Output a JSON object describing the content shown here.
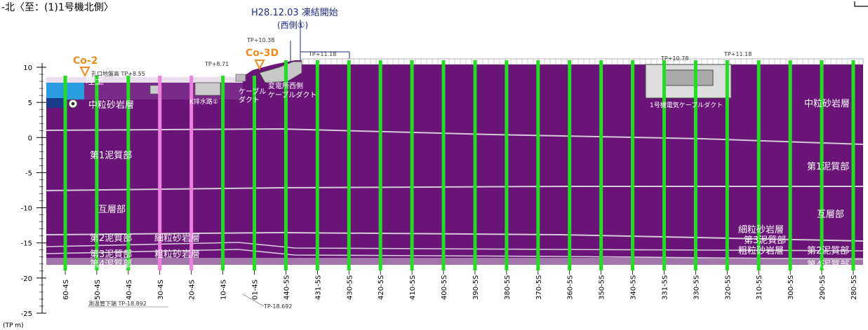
{
  "header": {
    "section_title": "-北〈至：(1)1号機北側〉",
    "event_date": "H28.12.03 凍結開始",
    "event_side": "(西側①)"
  },
  "markers": [
    {
      "name": "Co-2",
      "color": "#f08a1e"
    },
    {
      "name": "Co-3D",
      "color": "#f08a1e"
    }
  ],
  "elevations": {
    "tp_1038": "TP+10.38",
    "tp_1118_left": "TP+11.18",
    "tp_1078": "TP+10.78",
    "tp_1118_right": "TP+11.18",
    "tp_871": "TP+8.71",
    "borehole_ground": "孔口地盤高 TP+8.55",
    "measure_pipe_bottom": "測温管下端 TP-18.892",
    "pipe_bottom_2": "TP-18.692"
  },
  "structures": {
    "fill": "埋土",
    "drain": "K排水路①",
    "cable_duct_a": "ケーブル",
    "cable_duct_b": "ダクト",
    "substation_a": "変電所西側",
    "substation_b": "ケーブルダクト",
    "unit1_duct": "1号機電気ケーブルダクト"
  },
  "strata_left": {
    "medium_sand": "中粒砂岩層",
    "mud1": "第1泥質部",
    "alternating": "互層部",
    "mud2": "第2泥質部",
    "fine_sand": "細粒砂岩層",
    "mud3": "第3泥質部",
    "coarse_sand": "粗粒砂岩層",
    "mud4": "第4泥質部"
  },
  "strata_right": {
    "medium_sand": "中粒砂岩層",
    "mud1": "第1泥質部",
    "alternating": "互層部",
    "fine_sand": "細粒砂岩層",
    "mud3": "第3泥質部",
    "coarse_sand": "粗粒砂岩層",
    "mud2": "第2泥質部",
    "mud4": "第4泥質部"
  },
  "axis": {
    "unit": "(TP m)",
    "ticks": [
      "10",
      "5",
      "0",
      "-5",
      "-10",
      "-15",
      "-20",
      "-25"
    ]
  },
  "columns": [
    "60-4S",
    "50-4S",
    "40-4S",
    "30-4S",
    "20-4S",
    "10-4S",
    "01-4S",
    "440-5S",
    "431-5S",
    "430-5S",
    "420-5S",
    "410-5S",
    "400-5S",
    "390-5S",
    "380-5S",
    "370-5S",
    "360-5S",
    "350-5S",
    "340-5S",
    "331-5S",
    "330-5S",
    "320-5S",
    "310-5S",
    "300-5S",
    "290-5S",
    "280-5S"
  ],
  "colors": {
    "ground": "#6a1478",
    "frozen_pipe": "#22dd22",
    "pink_pipe": "#f080e0",
    "blue_zone": "#2a9de0",
    "event": "#1a2a8a"
  }
}
